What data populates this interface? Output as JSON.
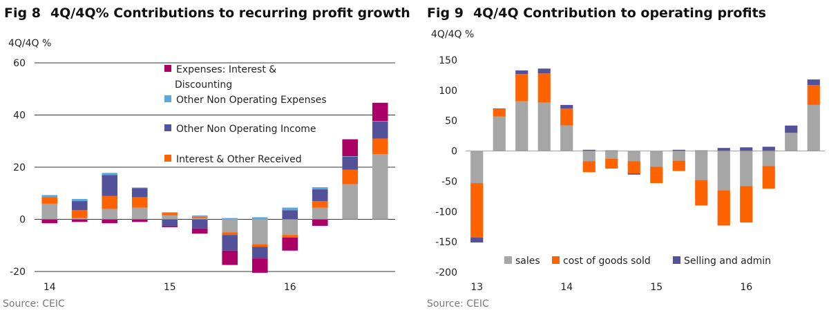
{
  "colors": {
    "sales": "#a6a6a6",
    "orange": "#ff6200",
    "purple": "#525199",
    "magenta": "#ab0066",
    "lightblue": "#5ea6dc",
    "grid": "#333333"
  },
  "panel1": {
    "fig_label": "Fig 8",
    "title": "4Q/4Q% Contributions to recurring profit growth",
    "unit": "4Q/4Q %",
    "source": "Source: CEIC"
  },
  "panel2": {
    "fig_label": "Fig 9",
    "title": "4Q/4Q Contribution to operating profits",
    "unit": "4Q/4Q %",
    "source": "Source: CEIC"
  },
  "chart_data": [
    {
      "type": "bar",
      "stacked": true,
      "ylim": [
        -20,
        60
      ],
      "yticks": [
        -20,
        0,
        20,
        40,
        60
      ],
      "grid": true,
      "x_tick_labels": [
        {
          "label": "14",
          "index": 0
        },
        {
          "label": "15",
          "index": 4
        },
        {
          "label": "16",
          "index": 8
        }
      ],
      "categories": [
        "",
        "",
        "",
        "",
        "",
        "",
        "",
        "",
        "",
        "",
        "",
        ""
      ],
      "series": [
        {
          "key": "base",
          "color": "#a6a6a6",
          "values": [
            6,
            0.5,
            4,
            4.5,
            1.5,
            0.5,
            -5,
            -9.5,
            -6,
            4.5,
            13.5,
            25
          ]
        },
        {
          "key": "interest_other_received",
          "name": "Interest & Other Received",
          "color": "#ff6200",
          "values": [
            2.5,
            3,
            5,
            4,
            1,
            0.5,
            -1,
            -1,
            -1,
            2.5,
            5.5,
            6
          ]
        },
        {
          "key": "other_non_operating_income",
          "name": "Other Non Operating Income",
          "color": "#525199",
          "values": [
            0,
            3.5,
            8,
            3.5,
            -2.5,
            -3.5,
            -6,
            -4.5,
            3.5,
            4.5,
            5,
            6.5
          ]
        },
        {
          "key": "other_non_operating_expenses",
          "name": "Other Non Operating Expenses",
          "color": "#5ea6dc",
          "values": [
            0.8,
            0.8,
            0.8,
            0.2,
            0.2,
            0.5,
            0.5,
            0.8,
            1,
            0.8,
            0.2,
            0.2
          ]
        },
        {
          "key": "expenses_interest_discounting",
          "name": "Expenses: Interest & Discounting",
          "color": "#ab0066",
          "values": [
            -1.5,
            -1,
            -1.5,
            -1,
            -0.5,
            -2,
            -5.5,
            -5.5,
            -5,
            -2.5,
            6.5,
            7
          ]
        }
      ],
      "legend": [
        {
          "key": "expenses_interest_discounting",
          "lines": [
            "Expenses: Interest &",
            "Discounting"
          ]
        },
        {
          "key": "other_non_operating_expenses",
          "lines": [
            "Other Non Operating Expenses"
          ]
        },
        {
          "key": "other_non_operating_income",
          "lines": [
            "Other Non Operating Income"
          ]
        },
        {
          "key": "interest_other_received",
          "lines": [
            "Interest & Other Received"
          ]
        }
      ],
      "legend_placement": "top-center"
    },
    {
      "type": "bar",
      "stacked": true,
      "ylim": [
        -200,
        150
      ],
      "yticks": [
        -200,
        -150,
        -100,
        -50,
        0,
        50,
        100,
        150
      ],
      "grid": false,
      "x_tick_labels": [
        {
          "label": "13",
          "index": 0
        },
        {
          "label": "14",
          "index": 4
        },
        {
          "label": "15",
          "index": 8
        },
        {
          "label": "16",
          "index": 12
        }
      ],
      "categories": [
        "",
        "",
        "",
        "",
        "",
        "",
        "",
        "",
        "",
        "",
        "",
        "",
        "",
        "",
        "",
        ""
      ],
      "series": [
        {
          "key": "sales",
          "name": "sales",
          "color": "#a6a6a6",
          "values": [
            -53,
            57,
            82,
            80,
            42,
            -17,
            -13,
            -17,
            -26,
            -16,
            -48,
            -65,
            -58,
            -25,
            30,
            76
          ]
        },
        {
          "key": "cogs",
          "name": "cost of goods sold",
          "color": "#ff6200",
          "values": [
            -90,
            12,
            45,
            48,
            28,
            -18,
            -16,
            -20,
            -27,
            -17,
            -42,
            -58,
            -60,
            -37,
            0,
            33
          ]
        },
        {
          "key": "sga",
          "name": "Selling and admin",
          "color": "#525199",
          "values": [
            -8,
            1,
            6,
            8,
            6,
            2,
            1,
            -2,
            0,
            2,
            1,
            5,
            6,
            7,
            12,
            9
          ]
        }
      ],
      "legend": [
        {
          "key": "sales",
          "lines": [
            "sales"
          ]
        },
        {
          "key": "cogs",
          "lines": [
            "cost of goods sold"
          ]
        },
        {
          "key": "sga",
          "lines": [
            "Selling and admin"
          ]
        }
      ],
      "legend_placement": "bottom"
    }
  ]
}
